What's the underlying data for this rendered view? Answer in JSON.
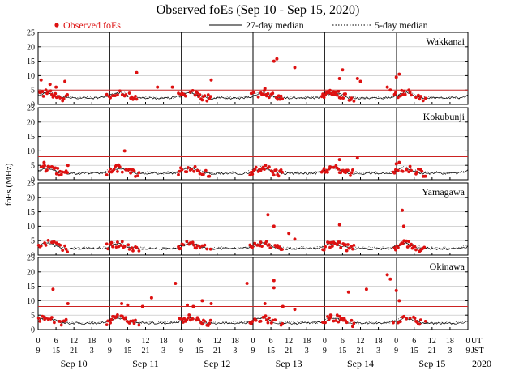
{
  "chart_data": {
    "type": "scatter",
    "title": "Observed foEs (Sep 10 - Sep 15, 2020)",
    "ylabel": "foEs (MHz)",
    "legend": {
      "observed": "Observed foEs",
      "median27": "27-day median",
      "median5": "5-day median"
    },
    "ylim": [
      0,
      25
    ],
    "yticks": [
      0,
      5,
      10,
      15,
      20,
      25
    ],
    "xrange_hours": [
      0,
      144
    ],
    "ut_ticks": [
      "0",
      "6",
      "12",
      "18",
      "0",
      "6",
      "12",
      "18",
      "0",
      "6",
      "12",
      "18",
      "0",
      "6",
      "12",
      "18",
      "0",
      "6",
      "12",
      "18",
      "0",
      "6",
      "12",
      "18",
      "0"
    ],
    "jst_ticks": [
      "9",
      "15",
      "21",
      "3",
      "9",
      "15",
      "21",
      "3",
      "9",
      "15",
      "21",
      "3",
      "9",
      "15",
      "21",
      "3",
      "9",
      "15",
      "21",
      "3",
      "9",
      "15",
      "21",
      "3",
      "9"
    ],
    "ut_label": "UT",
    "jst_label": "JST",
    "year": "2020",
    "days": [
      "Sep 10",
      "Sep 11",
      "Sep 12",
      "Sep 13",
      "Sep 14",
      "Sep 15"
    ],
    "threshold_color": "#cc2222",
    "point_color": "#dd1111",
    "stations": [
      {
        "name": "Wakkanai",
        "threshold": 5.0,
        "outliers": [
          [
            1,
            8.5
          ],
          [
            4,
            7
          ],
          [
            6,
            6
          ],
          [
            9,
            8
          ],
          [
            33,
            11
          ],
          [
            40,
            6
          ],
          [
            45,
            6
          ],
          [
            58,
            8.5
          ],
          [
            76,
            5.5
          ],
          [
            79,
            15
          ],
          [
            80,
            15.8
          ],
          [
            86,
            12.8
          ],
          [
            101,
            9
          ],
          [
            102,
            12
          ],
          [
            107,
            9
          ],
          [
            108,
            8
          ],
          [
            117,
            6
          ],
          [
            118,
            5
          ],
          [
            120,
            9.5
          ],
          [
            121,
            10.5
          ]
        ]
      },
      {
        "name": "Kokubunji",
        "threshold": 8.0,
        "outliers": [
          [
            2,
            6
          ],
          [
            10,
            5
          ],
          [
            29,
            10
          ],
          [
            101,
            7
          ],
          [
            107,
            7.5
          ],
          [
            120,
            5.5
          ],
          [
            121,
            6
          ]
        ]
      },
      {
        "name": "Yamagawa",
        "threshold": null,
        "outliers": [
          [
            77,
            14
          ],
          [
            79,
            10
          ],
          [
            84,
            7.5
          ],
          [
            86,
            5.5
          ],
          [
            101,
            10.5
          ],
          [
            122,
            15.5
          ],
          [
            122.5,
            10
          ]
        ]
      },
      {
        "name": "Okinawa",
        "threshold": 8.0,
        "outliers": [
          [
            5,
            14
          ],
          [
            10,
            9
          ],
          [
            28,
            9
          ],
          [
            30,
            8.5
          ],
          [
            35,
            8
          ],
          [
            38,
            11
          ],
          [
            46,
            16
          ],
          [
            50,
            8.5
          ],
          [
            52,
            8
          ],
          [
            55,
            10
          ],
          [
            58,
            9
          ],
          [
            70,
            16
          ],
          [
            76,
            9
          ],
          [
            79,
            14.5
          ],
          [
            79,
            17
          ],
          [
            82,
            8
          ],
          [
            86,
            7
          ],
          [
            98,
            5
          ],
          [
            104,
            13
          ],
          [
            110,
            14
          ],
          [
            117,
            19
          ],
          [
            118,
            17.5
          ],
          [
            120,
            13.5
          ],
          [
            121,
            10
          ]
        ]
      }
    ]
  }
}
